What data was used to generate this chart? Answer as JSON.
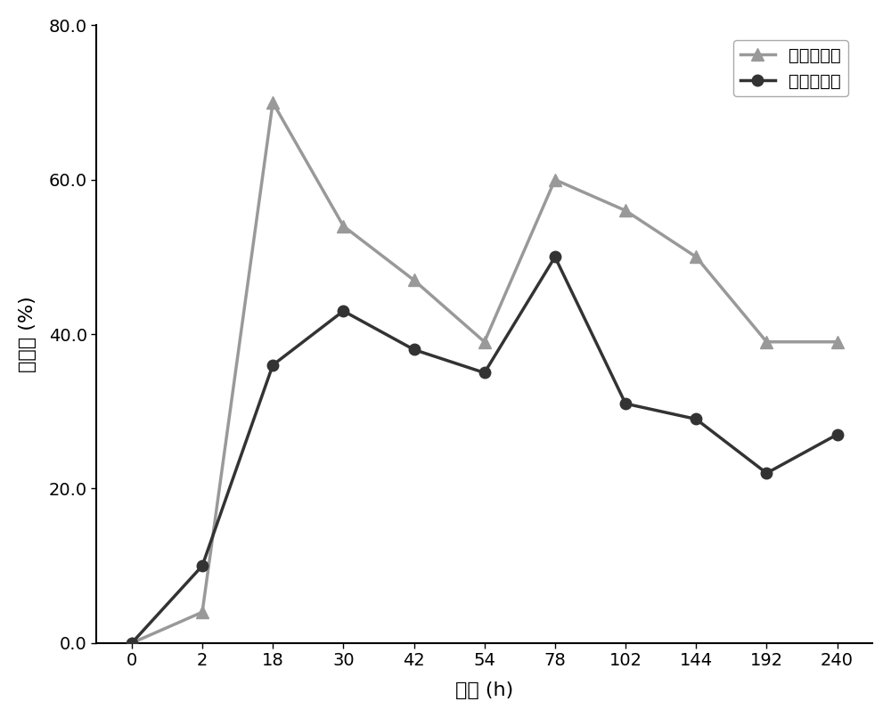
{
  "x_labels": [
    "0",
    "2",
    "18",
    "30",
    "42",
    "54",
    "78",
    "102",
    "144",
    "192",
    "240"
  ],
  "cu_removal": [
    0,
    4,
    70,
    54,
    47,
    39,
    60,
    56,
    50,
    39,
    39
  ],
  "cd_removal": [
    0,
    10,
    36,
    43,
    38,
    35,
    50,
    31,
    29,
    22,
    27
  ],
  "cu_label": "铜的去除率",
  "cd_label": "镟的去除率",
  "xlabel": "时间 (h)",
  "ylabel": "去除率 (%)",
  "cu_color": "#999999",
  "cd_color": "#333333",
  "ylim": [
    0,
    80
  ],
  "yticks": [
    0.0,
    20.0,
    40.0,
    60.0,
    80.0
  ],
  "ytick_labels": [
    "0.0",
    "20.0",
    "40.0",
    "60.0",
    "80.0"
  ],
  "background_color": "#ffffff",
  "figsize": [
    10,
    8.06
  ],
  "dpi": 100
}
